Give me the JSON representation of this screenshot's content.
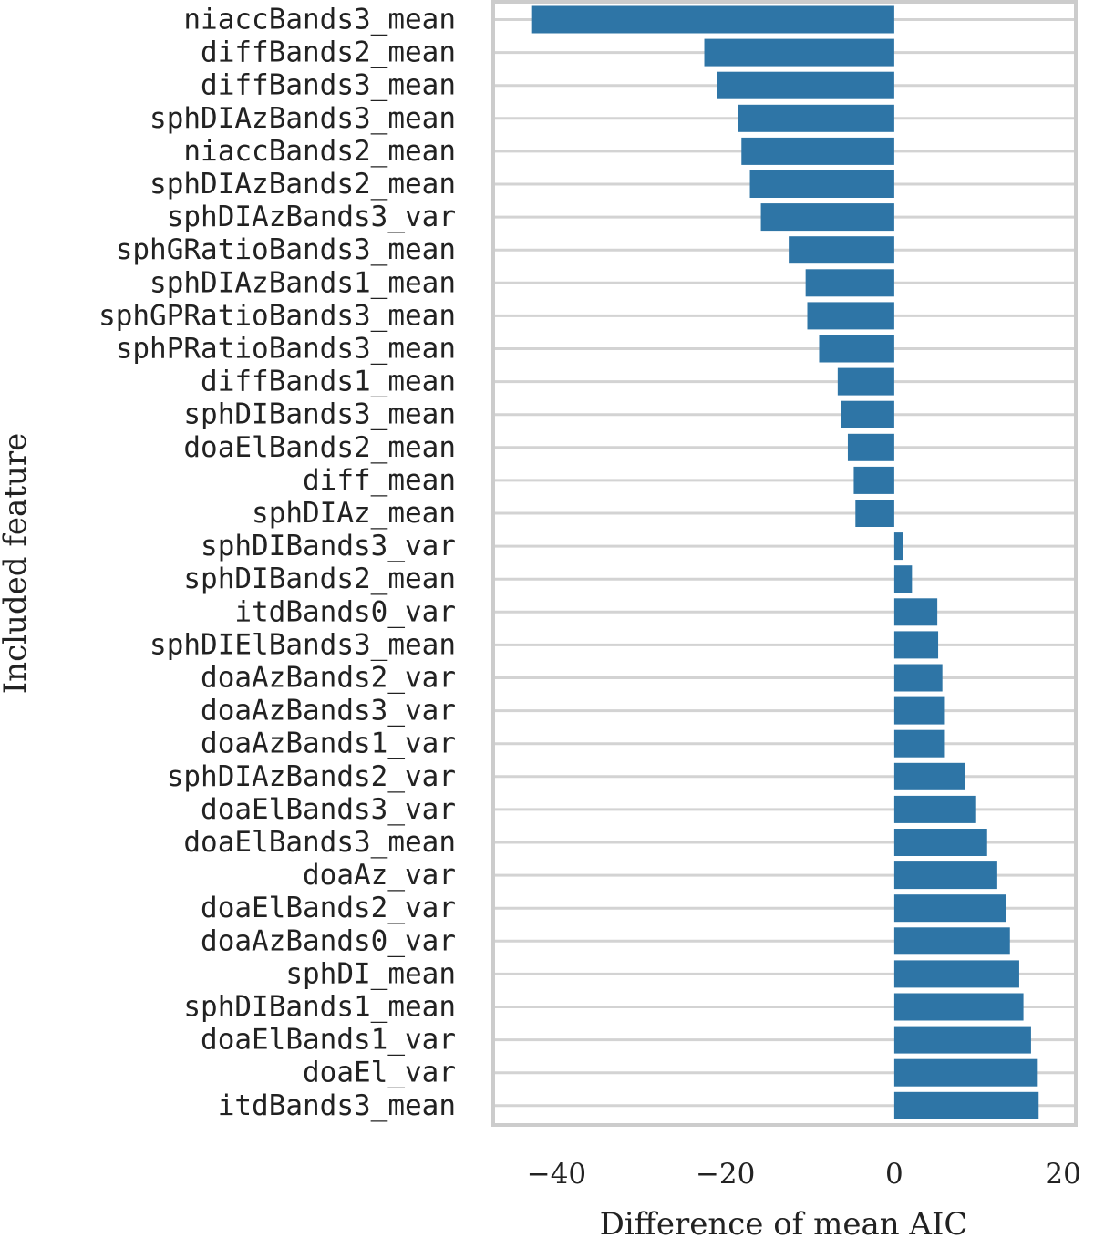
{
  "chart_data": {
    "type": "bar",
    "orientation": "horizontal",
    "xlabel": "Difference of mean AIC",
    "ylabel": "Included feature",
    "xlim": [
      -47.5,
      21.5
    ],
    "xticks": [
      -40,
      -20,
      0,
      20
    ],
    "xtick_labels": [
      "−40",
      "−20",
      "0",
      "20"
    ],
    "grid": "horizontal lines behind bars",
    "colors": {
      "bar": "#2e75a6",
      "grid": "#d3d3d3",
      "frame": "#cccccc"
    },
    "categories": [
      "niaccBands3_mean",
      "diffBands2_mean",
      "diffBands3_mean",
      "sphDIAzBands3_mean",
      "niaccBands2_mean",
      "sphDIAzBands2_mean",
      "sphDIAzBands3_var",
      "sphGRatioBands3_mean",
      "sphDIAzBands1_mean",
      "sphGPRatioBands3_mean",
      "sphPRatioBands3_mean",
      "diffBands1_mean",
      "sphDIBands3_mean",
      "doaElBands2_mean",
      "diff_mean",
      "sphDIAz_mean",
      "sphDIBands3_var",
      "sphDIBands2_mean",
      "itdBands0_var",
      "sphDIElBands3_mean",
      "doaAzBands2_var",
      "doaAzBands3_var",
      "doaAzBands1_var",
      "sphDIAzBands2_var",
      "doaElBands3_var",
      "doaElBands3_mean",
      "doaAz_var",
      "doaElBands2_var",
      "doaAzBands0_var",
      "sphDI_mean",
      "sphDIBands1_mean",
      "doaElBands1_var",
      "doaEl_var",
      "itdBands3_mean"
    ],
    "values": [
      -43.0,
      -22.5,
      -21.0,
      -18.5,
      -18.1,
      -17.1,
      -15.8,
      -12.5,
      -10.5,
      -10.3,
      -8.9,
      -6.7,
      -6.3,
      -5.5,
      -4.8,
      -4.6,
      1.0,
      2.1,
      5.1,
      5.2,
      5.7,
      6.0,
      6.0,
      8.4,
      9.7,
      11.0,
      12.2,
      13.2,
      13.7,
      14.8,
      15.3,
      16.2,
      17.0,
      17.1
    ]
  }
}
